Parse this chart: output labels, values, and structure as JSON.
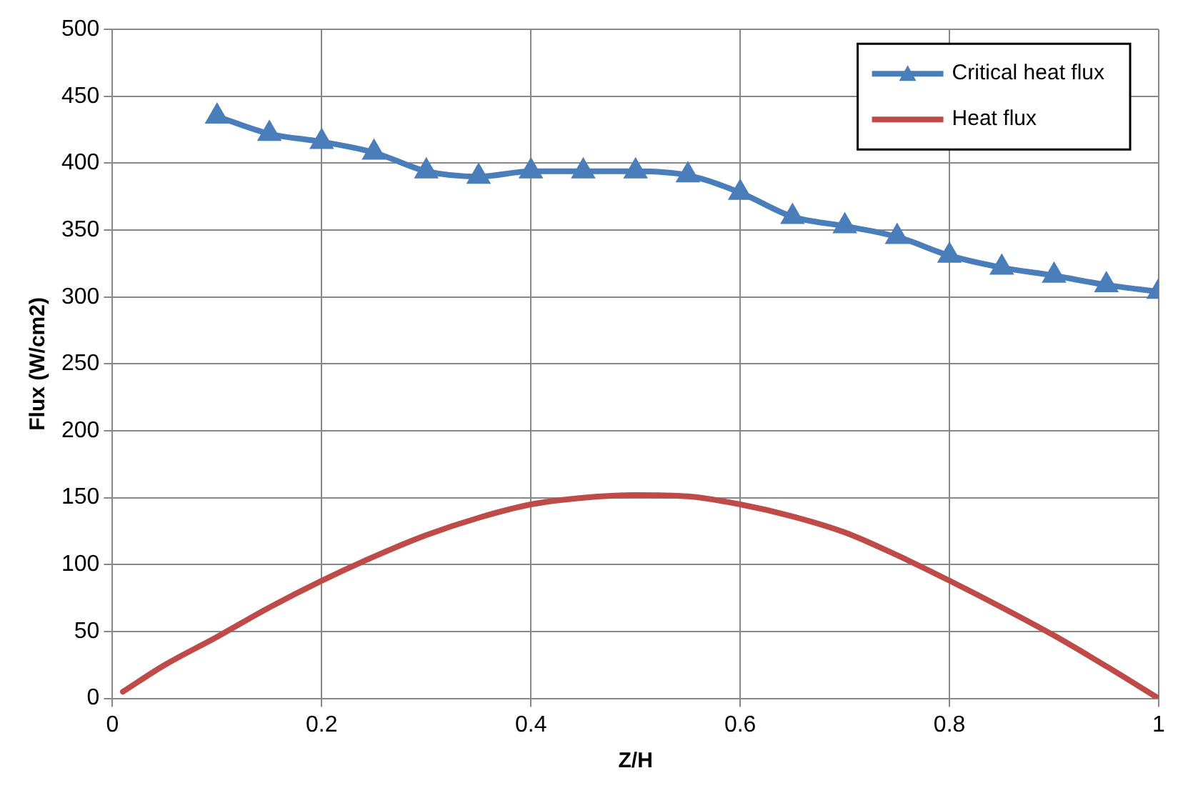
{
  "chart_data": {
    "type": "line",
    "xlabel": "Z/H",
    "ylabel": "Flux (W/cm2)",
    "xlim": [
      0,
      1
    ],
    "xticks": [
      0,
      0.2,
      0.4,
      0.6,
      0.8,
      1
    ],
    "ylim": [
      0,
      500
    ],
    "yticks": [
      0,
      50,
      100,
      150,
      200,
      250,
      300,
      350,
      400,
      450,
      500
    ],
    "grid": true,
    "legend": "top right",
    "line_style": "solid",
    "series": [
      {
        "name": "Critical heat flux",
        "color": "#4a7ebb",
        "marker": "triangle",
        "x": [
          0.1,
          0.15,
          0.2,
          0.25,
          0.3,
          0.35,
          0.4,
          0.45,
          0.5,
          0.55,
          0.6,
          0.65,
          0.7,
          0.75,
          0.8,
          0.85,
          0.9,
          0.95,
          1
        ],
        "values": [
          435,
          422,
          416,
          408,
          394,
          390,
          394,
          394,
          394,
          391,
          378,
          360,
          353,
          345,
          331,
          322,
          316,
          309,
          304
        ]
      },
      {
        "name": "Heat flux",
        "color": "#be4b48",
        "marker": "none",
        "x": [
          0.01,
          0.05,
          0.1,
          0.15,
          0.2,
          0.25,
          0.3,
          0.35,
          0.4,
          0.45,
          0.5,
          0.55,
          0.6,
          0.65,
          0.7,
          0.75,
          0.8,
          0.85,
          0.9,
          0.95,
          1
        ],
        "values": [
          5,
          25,
          46,
          68,
          88,
          106,
          122,
          135,
          145,
          150,
          152,
          151,
          145,
          136,
          124,
          107,
          88,
          68,
          47,
          24,
          0
        ]
      }
    ]
  }
}
